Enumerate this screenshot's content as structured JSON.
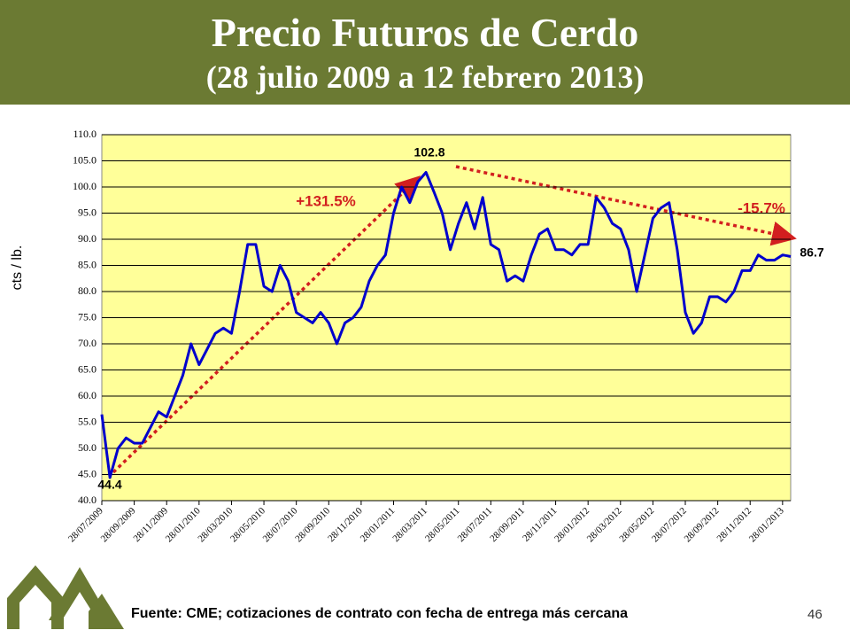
{
  "title": "Precio Futuros de Cerdo",
  "subtitle": "(28 julio 2009 a 12 febrero 2013)",
  "source": "Fuente: CME; cotizaciones de contrato con fecha de entrega más cercana",
  "page_number": "46",
  "chart_data": {
    "type": "line",
    "y_label": "cts / lb.",
    "categories": [
      "28/07/2009",
      null,
      null,
      null,
      "28/09/2009",
      null,
      null,
      null,
      "28/11/2009",
      null,
      null,
      null,
      "28/01/2010",
      null,
      null,
      null,
      "28/03/2010",
      null,
      null,
      null,
      "28/05/2010",
      null,
      null,
      null,
      "28/07/2010",
      null,
      null,
      null,
      "28/09/2010",
      null,
      null,
      null,
      "28/11/2010",
      null,
      null,
      null,
      "28/01/2011",
      null,
      null,
      null,
      "28/03/2011",
      null,
      null,
      null,
      "28/05/2011",
      null,
      null,
      null,
      "28/07/2011",
      null,
      null,
      null,
      "28/09/2011",
      null,
      null,
      null,
      "28/11/2011",
      null,
      null,
      null,
      "28/01/2012",
      null,
      null,
      null,
      "28/03/2012",
      null,
      null,
      null,
      "28/05/2012",
      null,
      null,
      null,
      "28/07/2012",
      null,
      null,
      null,
      "28/09/2012",
      null,
      null,
      null,
      "28/11/2012",
      null,
      null,
      null,
      "28/01/2013",
      null
    ],
    "series": [
      {
        "name": "Precio",
        "color": "#0000cc",
        "values": [
          56.5,
          44.4,
          50,
          52,
          51,
          51,
          54,
          57,
          56,
          60,
          64,
          70,
          66,
          69,
          72,
          73,
          72,
          80,
          89,
          89,
          81,
          80,
          85,
          82,
          76,
          75,
          74,
          76,
          74,
          70,
          74,
          75,
          77,
          82,
          85,
          87,
          95,
          100,
          97,
          101,
          102.8,
          99,
          95,
          88,
          93,
          97,
          92,
          98,
          89,
          88,
          82,
          83,
          82,
          87,
          91,
          92,
          88,
          88,
          87,
          89,
          89,
          98,
          96,
          93,
          92,
          88,
          80,
          87,
          94,
          96,
          97,
          88,
          76,
          72,
          74,
          79,
          79,
          78,
          80,
          84,
          84,
          87,
          86,
          86,
          87,
          86.7
        ]
      }
    ],
    "ylim": [
      40,
      110
    ],
    "yticks": [
      {
        "value": 40,
        "label": "40.0"
      },
      {
        "value": 45,
        "label": "45.0"
      },
      {
        "value": 50,
        "label": "50.0"
      },
      {
        "value": 55,
        "label": "55.0"
      },
      {
        "value": 60,
        "label": "60.0"
      },
      {
        "value": 65,
        "label": "65.0"
      },
      {
        "value": 70,
        "label": "70.0"
      },
      {
        "value": 75,
        "label": "75.0"
      },
      {
        "value": 80,
        "label": "80.0"
      },
      {
        "value": 85,
        "label": "85.0"
      },
      {
        "value": 90,
        "label": "90.0"
      },
      {
        "value": 95,
        "label": "95.0"
      },
      {
        "value": 100,
        "label": "100.0"
      },
      {
        "value": 105,
        "label": "105.0"
      },
      {
        "value": 110,
        "label": "110.0"
      }
    ],
    "grid": true,
    "annotations": [
      "102.8",
      "44.4",
      "86.7",
      "+131.5%",
      "-15.7%"
    ]
  }
}
